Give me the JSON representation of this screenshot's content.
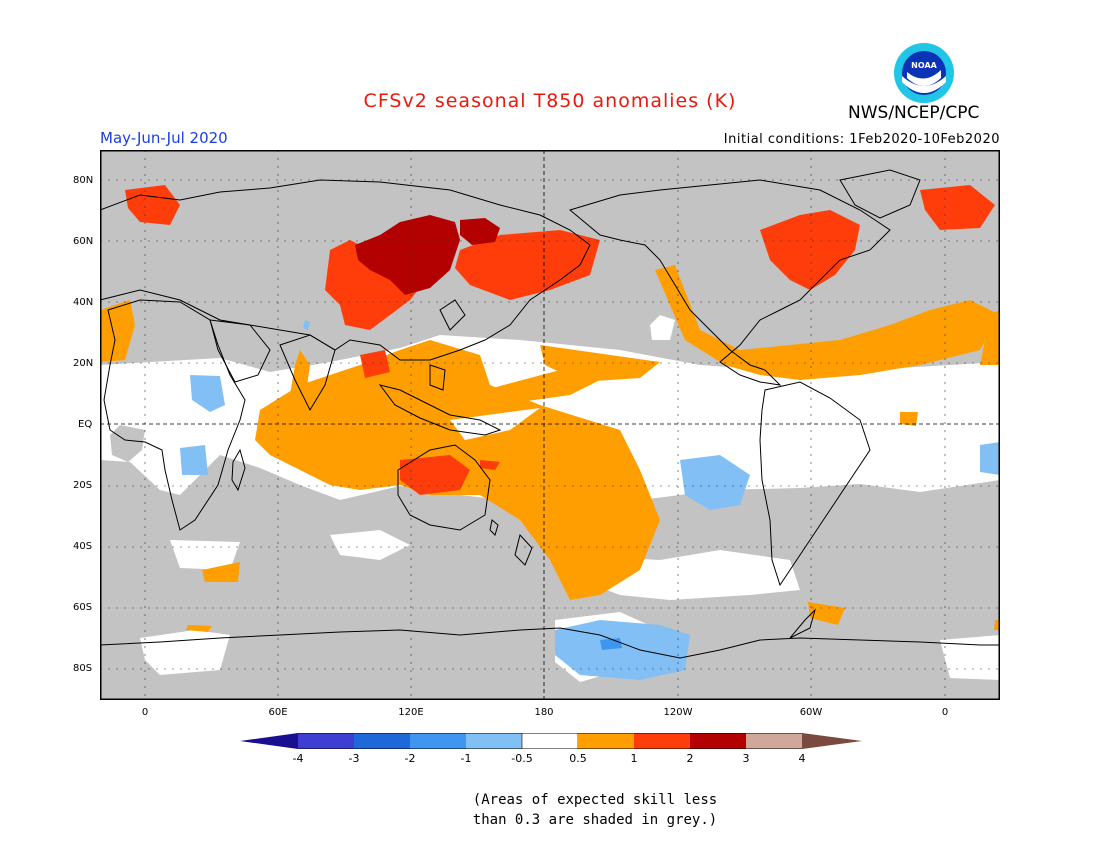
{
  "header": {
    "title": "CFSv2 seasonal T850 anomalies (K)",
    "agency": "NWS/NCEP/CPC",
    "logo_text": "NOAA",
    "period": "May-Jun-Jul 2020",
    "initial_conditions": "Initial conditions: 1Feb2020-10Feb2020"
  },
  "map": {
    "lat_labels": [
      "80N",
      "60N",
      "40N",
      "20N",
      "EQ",
      "20S",
      "40S",
      "60S",
      "80S"
    ],
    "lon_labels": [
      "0",
      "60E",
      "120E",
      "180",
      "120W",
      "60W",
      "0"
    ]
  },
  "colorbar": {
    "tick_labels": [
      "-4",
      "-3",
      "-2",
      "-1",
      "-0.5",
      "0.5",
      "1",
      "2",
      "3",
      "4"
    ],
    "colors": [
      "#1a0f8e",
      "#3f3ed3",
      "#1f68d9",
      "#3f96f0",
      "#82bff5",
      "#ffffff",
      "#ff9e00",
      "#ff3d0a",
      "#b30000",
      "#cfa89a",
      "#7a4a3e"
    ]
  },
  "note": {
    "line1": "(Areas of expected skill less",
    "line2": "than 0.3 are shaded in grey.)"
  }
}
